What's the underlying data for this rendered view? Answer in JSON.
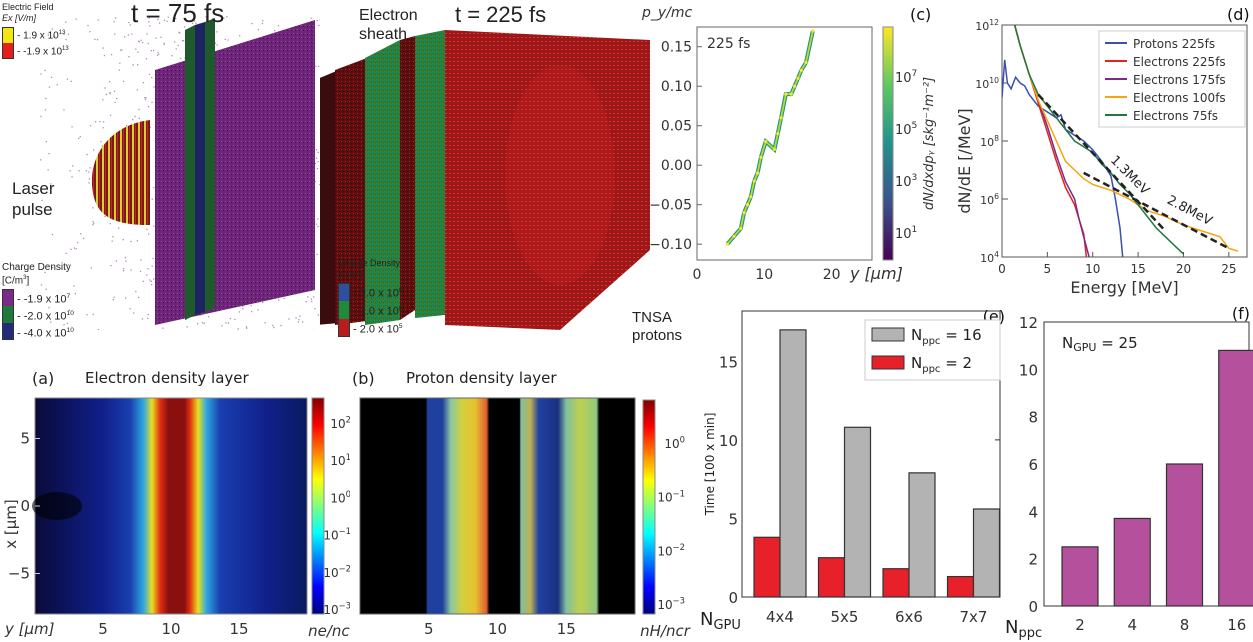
{
  "figure_3d": {
    "left": {
      "time_label": "t = 75 fs",
      "laser_label_line1": "Laser",
      "laser_label_line2": "pulse",
      "efield_legend": {
        "title": "Electric Field",
        "unit": "Ex [V/m]",
        "entries": [
          {
            "label": "1.9  x 10",
            "exp": "13",
            "color": "#f5e60f"
          },
          {
            "label": "-1.9  x 10",
            "exp": "13",
            "color": "#e3201b"
          }
        ]
      },
      "charge_legend": {
        "title": "Charge Density",
        "unit": "[C/m",
        "unit_exp": "3",
        "unit_close": "]",
        "entries": [
          {
            "label": "-1.9 x 10",
            "exp": "7",
            "color": "#7a2a8a"
          },
          {
            "label": "-2.0 x 10",
            "exp": "10",
            "color": "#1f7a3c"
          },
          {
            "label": "-4.0 x 10",
            "exp": "10",
            "color": "#232c7a"
          }
        ]
      }
    },
    "right": {
      "time_label": "t = 225 fs",
      "sheath_label_line1": "Electron",
      "sheath_label_line2": "sheath",
      "tnsa_label_line1": "TNSA",
      "tnsa_label_line2": "protons",
      "charge_legend": {
        "title": "Charge Density",
        "unit": "[C/m",
        "unit_exp": "3",
        "unit_close": "]",
        "entries": [
          {
            "label": "2.0 x 10",
            "exp": "8",
            "color": "#2e4fa0"
          },
          {
            "label": "1.0 x 10",
            "exp": "8",
            "color": "#1f8a3c"
          },
          {
            "label": "2.0 x 10",
            "exp": "5",
            "color": "#b81c1c"
          }
        ]
      }
    }
  },
  "chart_data": [
    {
      "id": "a",
      "type": "heatmap",
      "panel_label": "(a)",
      "title": "Electron density layer",
      "xlabel": "y [μm]",
      "ylabel": "x [μm]",
      "xticks": [
        5,
        10,
        15
      ],
      "yticks": [
        5,
        0,
        -5
      ],
      "xlim": [
        0,
        20
      ],
      "ylim": [
        -8,
        8
      ],
      "colorbar_label": "n_e/n_cr",
      "colorbar_ticks": [
        "10^2",
        "10^1",
        "10^0",
        "10^-1",
        "10^-2",
        "10^-3"
      ],
      "colorbar_range_log10": [
        -3,
        2.6
      ],
      "description": "Dense electron layer centered at y≈10.5 μm (~10^2), falling off to ~10^-2 on both sides"
    },
    {
      "id": "b",
      "type": "heatmap",
      "panel_label": "(b)",
      "title": "Proton density layer",
      "xticks": [
        5,
        10,
        15
      ],
      "xlim": [
        0,
        20
      ],
      "colorbar_label": "n_H/n_cr",
      "colorbar_ticks": [
        "10^0",
        "10^-1",
        "10^-2",
        "10^-3"
      ],
      "colorbar_range_log10": [
        -3,
        0.6
      ],
      "description": "Proton layers from y≈5 to 10 μm and 12 to 17.5 μm, black elsewhere"
    },
    {
      "id": "c",
      "type": "scatter",
      "panel_label": "(c)",
      "annotation": "225 fs",
      "ylabel": "p_y/mc",
      "xlabel": "y [μm]",
      "xticks": [
        0,
        10,
        20
      ],
      "yticks": [
        0.15,
        0.1,
        0.05,
        0.0,
        -0.05,
        -0.1
      ],
      "xlim": [
        0,
        26
      ],
      "ylim": [
        -0.12,
        0.175
      ],
      "colorbar_label": "dN/dxdp_y [skg^-1m^-2]",
      "colorbar_ticks": [
        "10^7",
        "10^5",
        "10^3",
        "10^1"
      ],
      "points": [
        [
          4.5,
          -0.1
        ],
        [
          5.5,
          -0.09
        ],
        [
          6.5,
          -0.08
        ],
        [
          7,
          -0.06
        ],
        [
          7.5,
          -0.05
        ],
        [
          8,
          -0.04
        ],
        [
          8.5,
          -0.02
        ],
        [
          9,
          -0.01
        ],
        [
          9.5,
          0.01
        ],
        [
          10.2,
          0.03
        ],
        [
          11.5,
          0.02
        ],
        [
          12,
          0.04
        ],
        [
          12.5,
          0.06
        ],
        [
          13.2,
          0.09
        ],
        [
          14,
          0.09
        ],
        [
          14.5,
          0.1
        ],
        [
          15,
          0.11
        ],
        [
          15.5,
          0.12
        ],
        [
          16.2,
          0.13
        ],
        [
          17.2,
          0.17
        ]
      ]
    },
    {
      "id": "d",
      "type": "line",
      "panel_label": "(d)",
      "xlabel": "Energy [MeV]",
      "ylabel": "dN/dE  [/MeV]",
      "yscale": "log",
      "xlim": [
        0,
        27
      ],
      "ylim_log10": [
        4,
        12
      ],
      "xticks": [
        0,
        5,
        10,
        15,
        20,
        25
      ],
      "yticks": [
        "10^4",
        "10^6",
        "10^8",
        "10^10",
        "10^12"
      ],
      "legend_position": "top-right",
      "series": [
        {
          "name": "Protons    225fs",
          "color": "#3b4fb0",
          "x": [
            0,
            0.3,
            0.6,
            1,
            1.5,
            2,
            2.5,
            3,
            4,
            5,
            6,
            6.5,
            7,
            8,
            9,
            10,
            11,
            12,
            12.5,
            13,
            13.3
          ],
          "log10y": [
            9.5,
            10.8,
            10.0,
            9.8,
            10.2,
            10.0,
            9.9,
            9.6,
            9.2,
            9.0,
            8.8,
            8.9,
            8.4,
            8.2,
            8.0,
            7.7,
            7.3,
            6.8,
            6.0,
            5.0,
            4.0
          ]
        },
        {
          "name": "Electrons 225fs",
          "color": "#e3231f",
          "x": [
            1.4,
            2,
            3,
            4,
            5,
            6,
            7,
            8,
            8.5,
            9,
            9.3
          ],
          "log10y": [
            12,
            11.3,
            10.3,
            9.3,
            8.3,
            7.3,
            6.4,
            5.8,
            5.3,
            4.8,
            4.0
          ]
        },
        {
          "name": "Electrons 175fs",
          "color": "#7b2a8a",
          "x": [
            1.4,
            2,
            3,
            4,
            5,
            6,
            7,
            8,
            8.5,
            9,
            9.6
          ],
          "log10y": [
            12,
            11.3,
            10.3,
            9.4,
            8.5,
            7.5,
            6.6,
            6.0,
            5.3,
            4.7,
            4.0
          ]
        },
        {
          "name": "Electrons 100fs",
          "color": "#f5a40f",
          "x": [
            1.4,
            2,
            3,
            4,
            5,
            6,
            7,
            8,
            9,
            10,
            12,
            14,
            16,
            18,
            20,
            22,
            24,
            25,
            26
          ],
          "log10y": [
            12,
            11.3,
            10.3,
            9.4,
            8.7,
            8.0,
            7.3,
            7.0,
            6.7,
            6.5,
            6.3,
            6.0,
            5.6,
            5.4,
            5.1,
            4.9,
            4.7,
            4.3,
            4.2
          ]
        },
        {
          "name": "Electrons   75fs",
          "color": "#1f7a3c",
          "x": [
            1.4,
            2,
            3,
            4,
            5,
            6,
            7,
            8,
            9,
            10,
            11,
            12,
            13,
            14,
            15,
            16,
            17,
            18,
            19,
            20
          ],
          "log10y": [
            12,
            11.3,
            10.3,
            9.6,
            9.2,
            8.8,
            8.4,
            8.0,
            7.8,
            7.6,
            7.2,
            6.9,
            6.5,
            6.2,
            5.8,
            5.4,
            5.0,
            4.7,
            4.4,
            4.1
          ]
        }
      ],
      "fits": [
        {
          "label": "1.3MeV",
          "x": [
            4,
            18
          ],
          "log10y": [
            9.6,
            4.9
          ]
        },
        {
          "label": "2.8MeV",
          "x": [
            9,
            25
          ],
          "log10y": [
            6.9,
            4.3
          ]
        }
      ]
    },
    {
      "id": "e",
      "type": "bar",
      "panel_label": "(e)",
      "ylabel": "Time [100 x min]",
      "xlabel_prefix": "N",
      "xlabel_sub": "GPU",
      "categories": [
        "4x4",
        "5x5",
        "6x6",
        "7x7"
      ],
      "ylim": [
        0,
        18.2
      ],
      "yticks": [
        0,
        5,
        10,
        15
      ],
      "legend_position": "top-right",
      "series": [
        {
          "name": "N_ppc = 2",
          "legend_main": "N",
          "legend_sub": "ppc",
          "legend_tail": " = 2",
          "color": "#e8202a",
          "values": [
            3.8,
            2.5,
            1.8,
            1.3
          ]
        },
        {
          "name": "N_ppc = 16",
          "legend_main": "N",
          "legend_sub": "ppc",
          "legend_tail": " = 16",
          "color": "#b3b3b3",
          "values": [
            17.0,
            10.8,
            7.9,
            5.6
          ]
        }
      ]
    },
    {
      "id": "f",
      "type": "bar",
      "panel_label": "(f)",
      "annotation_main": "N",
      "annotation_sub": "GPU",
      "annotation_tail": " = 25",
      "xlabel_prefix": "N",
      "xlabel_sub": "ppc",
      "categories": [
        "2",
        "4",
        "8",
        "16"
      ],
      "ylim": [
        0,
        12
      ],
      "yticks": [
        0,
        2,
        4,
        6,
        8,
        10,
        12
      ],
      "color": "#b5509c",
      "values": [
        2.5,
        3.7,
        6.0,
        10.8
      ]
    }
  ]
}
